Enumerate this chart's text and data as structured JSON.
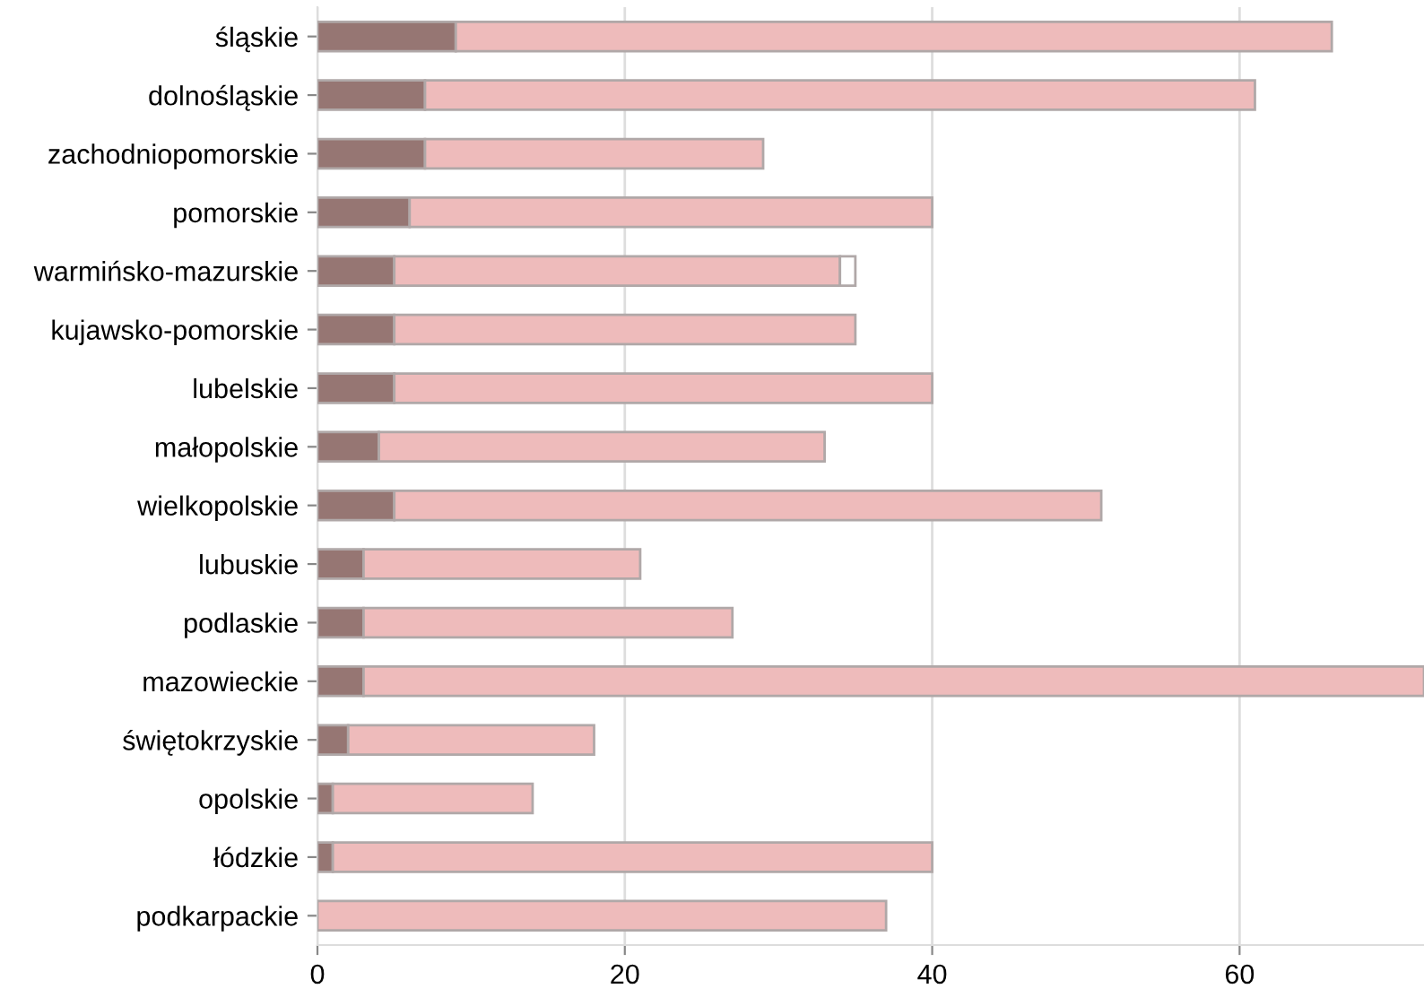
{
  "chart_data": {
    "type": "bar",
    "orientation": "horizontal",
    "stacked": true,
    "categories": [
      "śląskie",
      "dolnośląskie",
      "zachodniopomorskie",
      "pomorskie",
      "warmińsko-mazurskie",
      "kujawsko-pomorskie",
      "lubelskie",
      "małopolskie",
      "wielkopolskie",
      "lubuskie",
      "podlaskie",
      "mazowieckie",
      "świętokrzyskie",
      "opolskie",
      "łódzkie",
      "podkarpackie"
    ],
    "series": [
      {
        "color": "#967673",
        "values": [
          9,
          7,
          7,
          6,
          5,
          5,
          5,
          4,
          5,
          3,
          3,
          3,
          2,
          1,
          1,
          0
        ]
      },
      {
        "color": "#eebbbb",
        "values": [
          57,
          54,
          22,
          34,
          29,
          30,
          35,
          29,
          46,
          18,
          24,
          69,
          16,
          13,
          39,
          37
        ]
      },
      {
        "color": "#ffffff",
        "values": [
          null,
          null,
          null,
          null,
          1,
          null,
          null,
          null,
          null,
          null,
          null,
          null,
          null,
          null,
          null,
          null
        ]
      }
    ],
    "xlim": [
      0,
      72
    ],
    "xticks": [
      0,
      20,
      40,
      60
    ],
    "grid": "x",
    "legend": false
  }
}
